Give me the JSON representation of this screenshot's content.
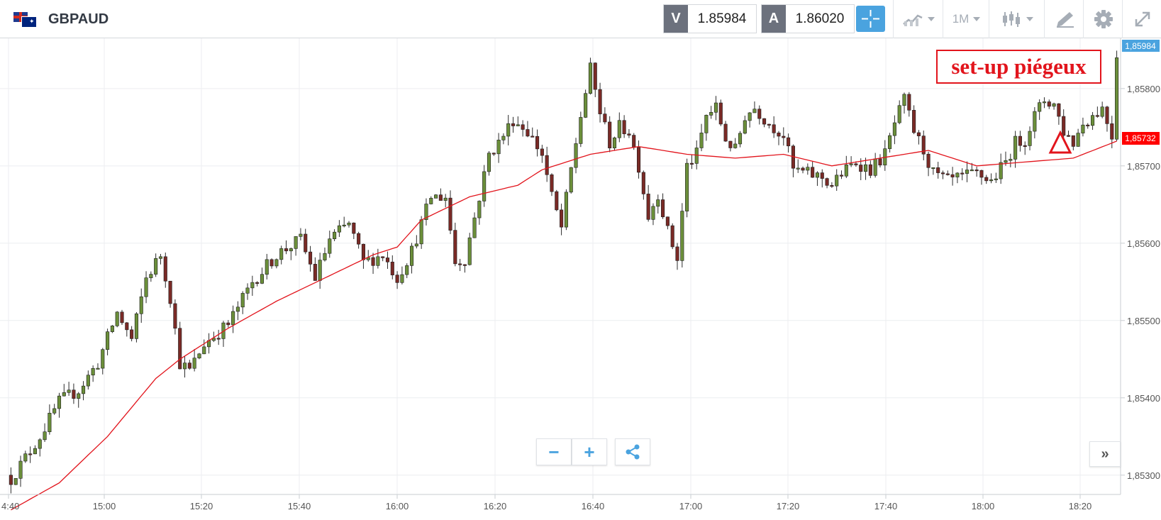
{
  "instrument": {
    "symbol": "GBPAUD",
    "flag_icon": "gb-au-flag-icon"
  },
  "prices": {
    "sell_label": "V",
    "sell_value": "1.85984",
    "buy_label": "A",
    "buy_value": "1.86020"
  },
  "toolbar": {
    "timeframe": "1M",
    "icons": [
      "crosshair-icon",
      "line-chart-icon",
      "candlestick-icon",
      "drawing-tool-icon",
      "gear-icon",
      "expand-icon"
    ]
  },
  "annotation": {
    "text": "set-up piégeux",
    "color": "#e2141c"
  },
  "colors": {
    "bullish": "#6b8f3a",
    "bearish": "#7a2a26",
    "moving_average": "#e2141c",
    "accent": "#4aa3df",
    "last_price_bg": "#4aa3df",
    "ma_price_bg": "#ff0000"
  },
  "chart_data": {
    "type": "candlestick",
    "instrument": "GBPAUD",
    "interval": "1M",
    "x_tick_labels": [
      "4:40",
      "15:00",
      "15:20",
      "15:40",
      "16:00",
      "16:20",
      "16:40",
      "17:00",
      "17:20",
      "17:40",
      "18:00",
      "18:20"
    ],
    "y_tick_labels": [
      "1,85800",
      "1,85700",
      "1,85600",
      "1,85500",
      "1,85400",
      "1,85300"
    ],
    "y_ticks": [
      1.858,
      1.857,
      1.856,
      1.855,
      1.854,
      1.853
    ],
    "ylim": [
      1.85275,
      1.85865
    ],
    "last_price_label": "1,85984",
    "last_price": 1.85984,
    "ma_price_label": "1,85732",
    "ma_price": 1.85732,
    "close_anchors": [
      [
        0,
        1.85295
      ],
      [
        6,
        1.8535
      ],
      [
        10,
        1.85395
      ],
      [
        14,
        1.8541
      ],
      [
        18,
        1.85445
      ],
      [
        22,
        1.8551
      ],
      [
        25,
        1.85475
      ],
      [
        28,
        1.85555
      ],
      [
        31,
        1.85585
      ],
      [
        33,
        1.8553
      ],
      [
        35,
        1.85445
      ],
      [
        37,
        1.85435
      ],
      [
        40,
        1.8547
      ],
      [
        45,
        1.85495
      ],
      [
        50,
        1.8555
      ],
      [
        55,
        1.85585
      ],
      [
        60,
        1.85605
      ],
      [
        63,
        1.85555
      ],
      [
        66,
        1.85605
      ],
      [
        70,
        1.85625
      ],
      [
        73,
        1.85575
      ],
      [
        77,
        1.85585
      ],
      [
        80,
        1.85555
      ],
      [
        83,
        1.8559
      ],
      [
        87,
        1.8566
      ],
      [
        90,
        1.8566
      ],
      [
        92,
        1.85575
      ],
      [
        94,
        1.8558
      ],
      [
        97,
        1.8566
      ],
      [
        99,
        1.85715
      ],
      [
        101,
        1.8573
      ],
      [
        104,
        1.8576
      ],
      [
        107,
        1.85745
      ],
      [
        110,
        1.85715
      ],
      [
        112,
        1.8566
      ],
      [
        114,
        1.8562
      ],
      [
        116,
        1.85695
      ],
      [
        118,
        1.85765
      ],
      [
        120,
        1.85825
      ],
      [
        122,
        1.8577
      ],
      [
        124,
        1.8573
      ],
      [
        126,
        1.8575
      ],
      [
        128,
        1.85745
      ],
      [
        130,
        1.857
      ],
      [
        132,
        1.85635
      ],
      [
        134,
        1.85665
      ],
      [
        136,
        1.85615
      ],
      [
        138,
        1.8558
      ],
      [
        140,
        1.857
      ],
      [
        142,
        1.85715
      ],
      [
        144,
        1.85765
      ],
      [
        146,
        1.85775
      ],
      [
        148,
        1.85735
      ],
      [
        150,
        1.8572
      ],
      [
        152,
        1.85765
      ],
      [
        154,
        1.85775
      ],
      [
        157,
        1.85755
      ],
      [
        160,
        1.8574
      ],
      [
        162,
        1.85695
      ],
      [
        165,
        1.8569
      ],
      [
        168,
        1.85685
      ],
      [
        170,
        1.85675
      ],
      [
        172,
        1.8569
      ],
      [
        175,
        1.85705
      ],
      [
        178,
        1.85695
      ],
      [
        181,
        1.85715
      ],
      [
        183,
        1.85755
      ],
      [
        185,
        1.85785
      ],
      [
        187,
        1.85745
      ],
      [
        189,
        1.8572
      ],
      [
        191,
        1.8569
      ],
      [
        194,
        1.8568
      ],
      [
        197,
        1.85685
      ],
      [
        200,
        1.8569
      ],
      [
        203,
        1.8568
      ],
      [
        206,
        1.85705
      ],
      [
        208,
        1.8573
      ],
      [
        210,
        1.85735
      ],
      [
        212,
        1.85765
      ],
      [
        214,
        1.85785
      ],
      [
        216,
        1.8578
      ],
      [
        218,
        1.85745
      ],
      [
        220,
        1.8573
      ],
      [
        222,
        1.85755
      ],
      [
        224,
        1.85765
      ],
      [
        226,
        1.85775
      ],
      [
        228,
        1.8574
      ],
      [
        229,
        1.85845
      ]
    ],
    "moving_average": [
      [
        0,
        1.85255
      ],
      [
        10,
        1.8529
      ],
      [
        20,
        1.8535
      ],
      [
        30,
        1.85425
      ],
      [
        35,
        1.8545
      ],
      [
        45,
        1.8549
      ],
      [
        55,
        1.85525
      ],
      [
        65,
        1.85555
      ],
      [
        75,
        1.85585
      ],
      [
        80,
        1.85595
      ],
      [
        85,
        1.8563
      ],
      [
        95,
        1.8566
      ],
      [
        105,
        1.85675
      ],
      [
        110,
        1.85695
      ],
      [
        120,
        1.85715
      ],
      [
        130,
        1.85725
      ],
      [
        140,
        1.85715
      ],
      [
        150,
        1.8571
      ],
      [
        160,
        1.85715
      ],
      [
        170,
        1.857
      ],
      [
        180,
        1.8571
      ],
      [
        190,
        1.8572
      ],
      [
        200,
        1.857
      ],
      [
        210,
        1.85705
      ],
      [
        220,
        1.8571
      ],
      [
        229,
        1.85732
      ]
    ],
    "candle_count": 230
  }
}
